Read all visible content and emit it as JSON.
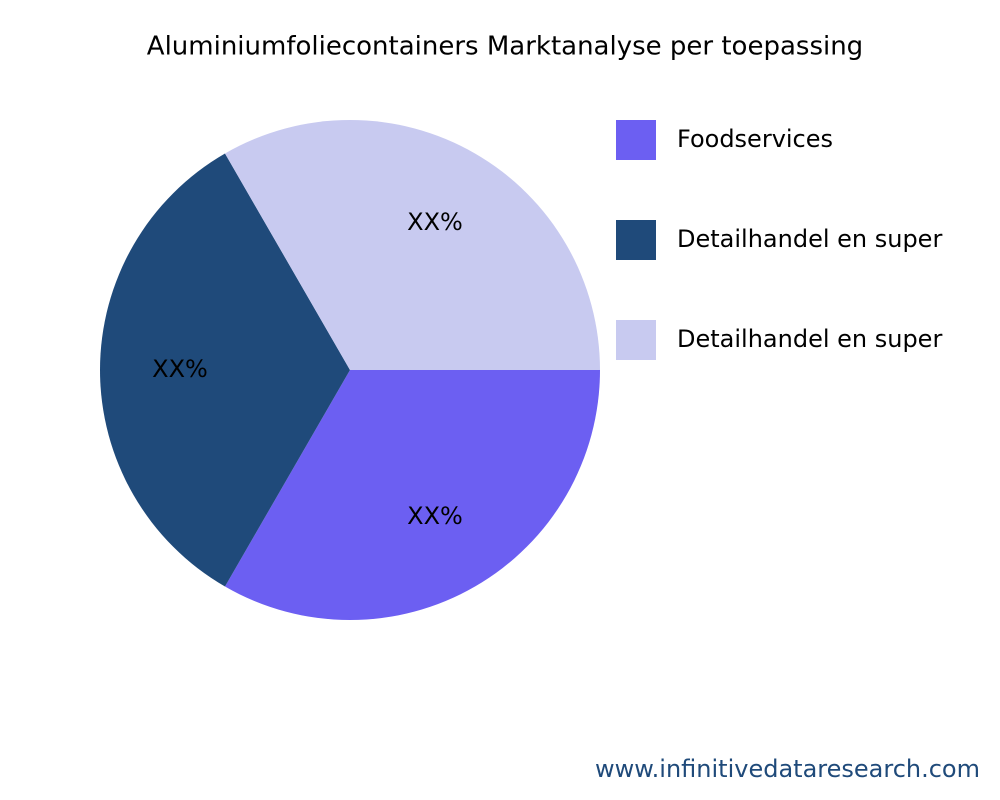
{
  "chart_data": {
    "type": "pie",
    "title": "Aluminiumfoliecontainers Marktanalyse per toepassing",
    "categories": [
      "Foodservices",
      "Detailhandel en super",
      "Detailhandel en super"
    ],
    "values": [
      33.33,
      33.33,
      33.33
    ],
    "value_labels": [
      "XX%",
      "XX%",
      "XX%"
    ],
    "colors": [
      "#6c5ff2",
      "#1f4a7a",
      "#c8caf0"
    ],
    "watermark": "www.infinitivedataresearch.com"
  }
}
